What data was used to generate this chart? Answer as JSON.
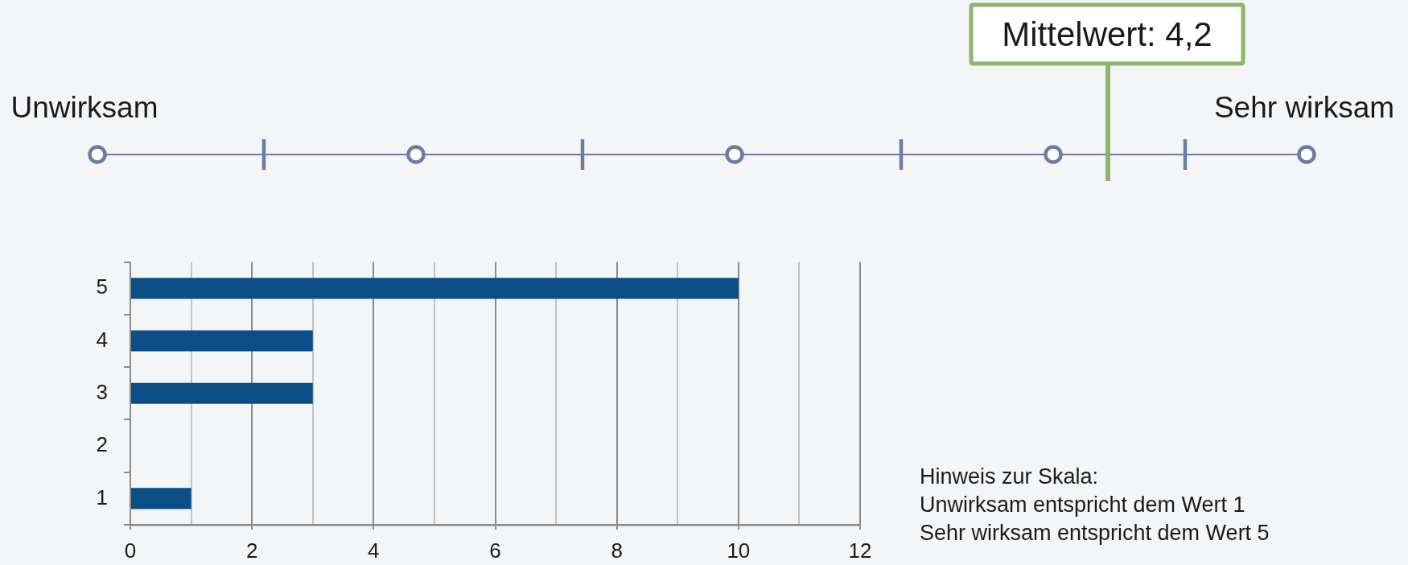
{
  "chart_data": [
    {
      "type": "other",
      "annotations": [
        "Mittelwert: 4,2",
        "Unwirksam",
        "Sehr wirksam"
      ]
    },
    {
      "type": "bar",
      "orientation": "horizontal",
      "categories": [
        "5",
        "4",
        "3",
        "2",
        "1"
      ],
      "values": [
        10,
        3,
        3,
        0,
        1
      ],
      "color": "#0a4e85",
      "xlim": [
        0,
        12
      ],
      "xticks": [
        0,
        {
          "value": 1,
          "label": null
        },
        2,
        {
          "value": 3,
          "label": null
        },
        4,
        {
          "value": 5,
          "label": null
        },
        6,
        {
          "value": 7,
          "label": null
        },
        8,
        {
          "value": 9,
          "label": null
        },
        10,
        {
          "value": 11,
          "label": null
        },
        12
      ],
      "grid": "x",
      "annotations": [
        "Hinweis zur Skala:",
        "Unwirksam entspricht dem Wert 1",
        "Sehr wirksam entspricht dem Wert 5"
      ]
    }
  ]
}
